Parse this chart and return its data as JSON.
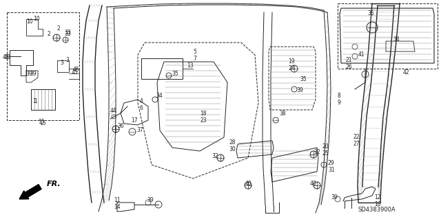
{
  "bg_color": "#ffffff",
  "diagram_code": "SD4383900A",
  "fig_width": 6.4,
  "fig_height": 3.19,
  "dpi": 100,
  "gray": "#222222",
  "lgray": "#777777",
  "label_fontsize": 5.5
}
